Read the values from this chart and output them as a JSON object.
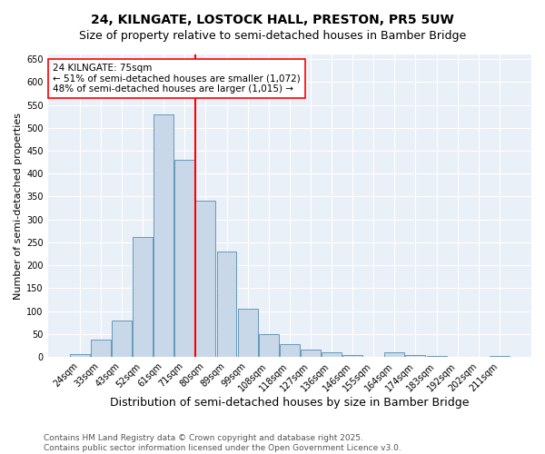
{
  "title": "24, KILNGATE, LOSTOCK HALL, PRESTON, PR5 5UW",
  "subtitle": "Size of property relative to semi-detached houses in Bamber Bridge",
  "xlabel": "Distribution of semi-detached houses by size in Bamber Bridge",
  "ylabel": "Number of semi-detached properties",
  "categories": [
    "24sqm",
    "33sqm",
    "43sqm",
    "52sqm",
    "61sqm",
    "71sqm",
    "80sqm",
    "89sqm",
    "99sqm",
    "108sqm",
    "118sqm",
    "127sqm",
    "136sqm",
    "146sqm",
    "155sqm",
    "164sqm",
    "174sqm",
    "183sqm",
    "192sqm",
    "202sqm",
    "211sqm"
  ],
  "values": [
    7,
    38,
    80,
    262,
    530,
    430,
    340,
    230,
    105,
    50,
    28,
    15,
    10,
    5,
    1,
    10,
    5,
    2,
    1,
    1,
    3
  ],
  "bar_color": "#c8d8e8",
  "bar_edge_color": "#6699bb",
  "vline_x": 6.0,
  "vline_color": "red",
  "annotation_text": "24 KILNGATE: 75sqm\n← 51% of semi-detached houses are smaller (1,072)\n48% of semi-detached houses are larger (1,015) →",
  "annotation_box_color": "white",
  "annotation_box_edge_color": "red",
  "ylim": [
    0,
    660
  ],
  "yticks": [
    0,
    50,
    100,
    150,
    200,
    250,
    300,
    350,
    400,
    450,
    500,
    550,
    600,
    650
  ],
  "bg_color": "#eaf0f8",
  "footer": "Contains HM Land Registry data © Crown copyright and database right 2025.\nContains public sector information licensed under the Open Government Licence v3.0.",
  "title_fontsize": 10,
  "subtitle_fontsize": 9,
  "xlabel_fontsize": 9,
  "ylabel_fontsize": 8,
  "tick_fontsize": 7,
  "footer_fontsize": 6.5,
  "annot_fontsize": 7.5
}
